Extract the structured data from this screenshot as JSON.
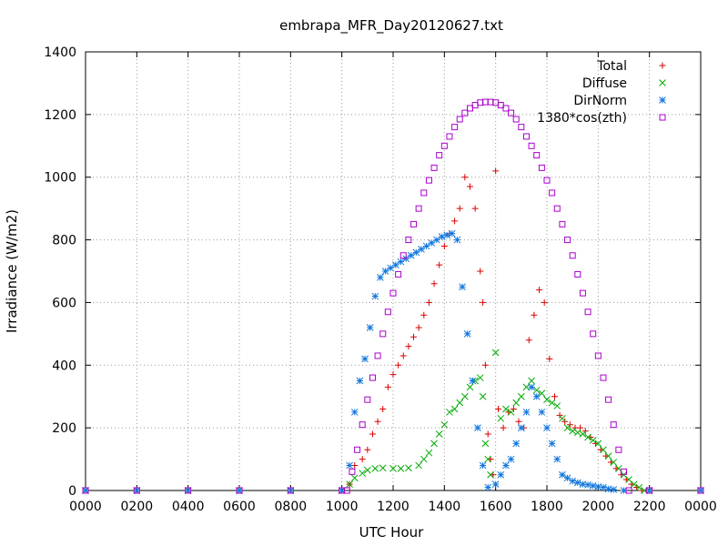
{
  "chart_data": {
    "type": "scatter",
    "title": "embrapa_MFR_Day20120627.txt",
    "xlabel": "UTC Hour",
    "ylabel": "Irradiance (W/m2)",
    "xlim": [
      0,
      24
    ],
    "ylim": [
      0,
      1400
    ],
    "x_ticks": [
      0,
      2,
      4,
      6,
      8,
      10,
      12,
      14,
      16,
      18,
      20,
      22,
      24
    ],
    "x_tick_labels": [
      "0000",
      "0200",
      "0400",
      "0600",
      "0800",
      "1000",
      "1200",
      "1400",
      "1600",
      "1800",
      "2000",
      "2200",
      "0000"
    ],
    "y_ticks": [
      0,
      200,
      400,
      600,
      800,
      1000,
      1200,
      1400
    ],
    "y_tick_labels": [
      "0",
      "200",
      "400",
      "600",
      "800",
      "1000",
      "1200",
      "1400"
    ],
    "grid": true,
    "legend_position": "top-right",
    "series": [
      {
        "name": "Total",
        "color": "#dd0000",
        "marker": "plus",
        "points": [
          [
            0,
            0
          ],
          [
            2,
            0
          ],
          [
            4,
            0
          ],
          [
            6,
            0
          ],
          [
            8,
            0
          ],
          [
            10,
            0
          ],
          [
            10.3,
            20
          ],
          [
            10.5,
            80
          ],
          [
            10.8,
            100
          ],
          [
            11,
            130
          ],
          [
            11.2,
            180
          ],
          [
            11.4,
            220
          ],
          [
            11.6,
            260
          ],
          [
            11.8,
            330
          ],
          [
            12,
            370
          ],
          [
            12.2,
            400
          ],
          [
            12.4,
            430
          ],
          [
            12.6,
            460
          ],
          [
            12.8,
            490
          ],
          [
            13,
            520
          ],
          [
            13.2,
            560
          ],
          [
            13.4,
            600
          ],
          [
            13.6,
            660
          ],
          [
            13.8,
            720
          ],
          [
            14,
            780
          ],
          [
            14.2,
            820
          ],
          [
            14.4,
            860
          ],
          [
            14.6,
            900
          ],
          [
            14.8,
            1000
          ],
          [
            15,
            970
          ],
          [
            15.2,
            900
          ],
          [
            15.4,
            700
          ],
          [
            15.5,
            600
          ],
          [
            15.6,
            400
          ],
          [
            15.7,
            180
          ],
          [
            15.8,
            100
          ],
          [
            15.9,
            50
          ],
          [
            16,
            1020
          ],
          [
            16.1,
            260
          ],
          [
            16.3,
            200
          ],
          [
            16.5,
            250
          ],
          [
            16.7,
            260
          ],
          [
            16.9,
            220
          ],
          [
            17.1,
            200
          ],
          [
            17.3,
            480
          ],
          [
            17.5,
            560
          ],
          [
            17.7,
            640
          ],
          [
            17.9,
            600
          ],
          [
            18.1,
            420
          ],
          [
            18.3,
            300
          ],
          [
            18.5,
            240
          ],
          [
            18.7,
            220
          ],
          [
            18.9,
            210
          ],
          [
            19.1,
            200
          ],
          [
            19.3,
            200
          ],
          [
            19.5,
            190
          ],
          [
            19.7,
            170
          ],
          [
            19.9,
            150
          ],
          [
            20.1,
            130
          ],
          [
            20.3,
            110
          ],
          [
            20.5,
            90
          ],
          [
            20.7,
            70
          ],
          [
            20.9,
            50
          ],
          [
            21.1,
            35
          ],
          [
            21.3,
            20
          ],
          [
            21.5,
            10
          ],
          [
            21.7,
            0
          ],
          [
            22,
            0
          ],
          [
            24,
            0
          ]
        ]
      },
      {
        "name": "Diffuse",
        "color": "#00aa00",
        "marker": "x",
        "points": [
          [
            0,
            0
          ],
          [
            2,
            0
          ],
          [
            4,
            0
          ],
          [
            6,
            0
          ],
          [
            8,
            0
          ],
          [
            10,
            0
          ],
          [
            10.3,
            20
          ],
          [
            10.5,
            40
          ],
          [
            10.8,
            55
          ],
          [
            11,
            65
          ],
          [
            11.3,
            70
          ],
          [
            11.6,
            72
          ],
          [
            12,
            70
          ],
          [
            12.3,
            70
          ],
          [
            12.6,
            72
          ],
          [
            13,
            80
          ],
          [
            13.2,
            100
          ],
          [
            13.4,
            120
          ],
          [
            13.6,
            150
          ],
          [
            13.8,
            180
          ],
          [
            14,
            210
          ],
          [
            14.2,
            250
          ],
          [
            14.4,
            260
          ],
          [
            14.6,
            280
          ],
          [
            14.8,
            300
          ],
          [
            15,
            330
          ],
          [
            15.2,
            350
          ],
          [
            15.4,
            360
          ],
          [
            15.5,
            300
          ],
          [
            15.6,
            150
          ],
          [
            15.7,
            100
          ],
          [
            15.8,
            50
          ],
          [
            16,
            440
          ],
          [
            16.2,
            230
          ],
          [
            16.4,
            260
          ],
          [
            16.6,
            250
          ],
          [
            16.8,
            280
          ],
          [
            17,
            300
          ],
          [
            17.2,
            330
          ],
          [
            17.4,
            350
          ],
          [
            17.6,
            320
          ],
          [
            17.8,
            310
          ],
          [
            18,
            290
          ],
          [
            18.2,
            280
          ],
          [
            18.4,
            270
          ],
          [
            18.6,
            230
          ],
          [
            18.8,
            200
          ],
          [
            19,
            190
          ],
          [
            19.2,
            185
          ],
          [
            19.4,
            180
          ],
          [
            19.6,
            170
          ],
          [
            19.8,
            160
          ],
          [
            20,
            150
          ],
          [
            20.2,
            130
          ],
          [
            20.4,
            110
          ],
          [
            20.6,
            90
          ],
          [
            20.8,
            70
          ],
          [
            21,
            50
          ],
          [
            21.2,
            35
          ],
          [
            21.4,
            20
          ],
          [
            21.6,
            10
          ],
          [
            21.8,
            0
          ],
          [
            22,
            0
          ],
          [
            24,
            0
          ]
        ]
      },
      {
        "name": "DirNorm",
        "color": "#1177dd",
        "marker": "asterisk",
        "points": [
          [
            0,
            0
          ],
          [
            2,
            0
          ],
          [
            4,
            0
          ],
          [
            6,
            0
          ],
          [
            8,
            0
          ],
          [
            10,
            0
          ],
          [
            10.3,
            80
          ],
          [
            10.5,
            250
          ],
          [
            10.7,
            350
          ],
          [
            10.9,
            420
          ],
          [
            11.1,
            520
          ],
          [
            11.3,
            620
          ],
          [
            11.5,
            680
          ],
          [
            11.7,
            700
          ],
          [
            11.9,
            710
          ],
          [
            12.1,
            720
          ],
          [
            12.3,
            730
          ],
          [
            12.5,
            740
          ],
          [
            12.7,
            750
          ],
          [
            12.9,
            760
          ],
          [
            13.1,
            770
          ],
          [
            13.3,
            780
          ],
          [
            13.5,
            790
          ],
          [
            13.7,
            800
          ],
          [
            13.9,
            810
          ],
          [
            14.1,
            815
          ],
          [
            14.3,
            820
          ],
          [
            14.5,
            800
          ],
          [
            14.7,
            650
          ],
          [
            14.9,
            500
          ],
          [
            15.1,
            350
          ],
          [
            15.3,
            200
          ],
          [
            15.5,
            80
          ],
          [
            15.7,
            10
          ],
          [
            16,
            20
          ],
          [
            16.2,
            50
          ],
          [
            16.4,
            80
          ],
          [
            16.6,
            100
          ],
          [
            16.8,
            150
          ],
          [
            17,
            200
          ],
          [
            17.2,
            250
          ],
          [
            17.4,
            330
          ],
          [
            17.6,
            300
          ],
          [
            17.8,
            250
          ],
          [
            18,
            200
          ],
          [
            18.2,
            150
          ],
          [
            18.4,
            100
          ],
          [
            18.6,
            50
          ],
          [
            18.8,
            40
          ],
          [
            19,
            30
          ],
          [
            19.2,
            25
          ],
          [
            19.4,
            20
          ],
          [
            19.6,
            18
          ],
          [
            19.8,
            15
          ],
          [
            20,
            12
          ],
          [
            20.2,
            10
          ],
          [
            20.4,
            5
          ],
          [
            20.6,
            3
          ],
          [
            21,
            0
          ],
          [
            22,
            0
          ],
          [
            24,
            0
          ]
        ]
      },
      {
        "name": "1380*cos(zth)",
        "color": "#aa00cc",
        "marker": "square",
        "points": [
          [
            0,
            0
          ],
          [
            2,
            0
          ],
          [
            4,
            0
          ],
          [
            6,
            0
          ],
          [
            8,
            0
          ],
          [
            10,
            0
          ],
          [
            10.2,
            0
          ],
          [
            10.4,
            60
          ],
          [
            10.6,
            130
          ],
          [
            10.8,
            210
          ],
          [
            11,
            290
          ],
          [
            11.2,
            360
          ],
          [
            11.4,
            430
          ],
          [
            11.6,
            500
          ],
          [
            11.8,
            570
          ],
          [
            12,
            630
          ],
          [
            12.2,
            690
          ],
          [
            12.4,
            750
          ],
          [
            12.6,
            800
          ],
          [
            12.8,
            850
          ],
          [
            13,
            900
          ],
          [
            13.2,
            950
          ],
          [
            13.4,
            990
          ],
          [
            13.6,
            1030
          ],
          [
            13.8,
            1070
          ],
          [
            14,
            1100
          ],
          [
            14.2,
            1130
          ],
          [
            14.4,
            1160
          ],
          [
            14.6,
            1185
          ],
          [
            14.8,
            1205
          ],
          [
            15,
            1220
          ],
          [
            15.2,
            1230
          ],
          [
            15.4,
            1238
          ],
          [
            15.6,
            1240
          ],
          [
            15.8,
            1240
          ],
          [
            16,
            1238
          ],
          [
            16.2,
            1230
          ],
          [
            16.4,
            1220
          ],
          [
            16.6,
            1205
          ],
          [
            16.8,
            1185
          ],
          [
            17,
            1160
          ],
          [
            17.2,
            1130
          ],
          [
            17.4,
            1100
          ],
          [
            17.6,
            1070
          ],
          [
            17.8,
            1030
          ],
          [
            18,
            990
          ],
          [
            18.2,
            950
          ],
          [
            18.4,
            900
          ],
          [
            18.6,
            850
          ],
          [
            18.8,
            800
          ],
          [
            19,
            750
          ],
          [
            19.2,
            690
          ],
          [
            19.4,
            630
          ],
          [
            19.6,
            570
          ],
          [
            19.8,
            500
          ],
          [
            20,
            430
          ],
          [
            20.2,
            360
          ],
          [
            20.4,
            290
          ],
          [
            20.6,
            210
          ],
          [
            20.8,
            130
          ],
          [
            21,
            60
          ],
          [
            21.2,
            0
          ],
          [
            22,
            0
          ],
          [
            24,
            0
          ]
        ]
      }
    ]
  }
}
